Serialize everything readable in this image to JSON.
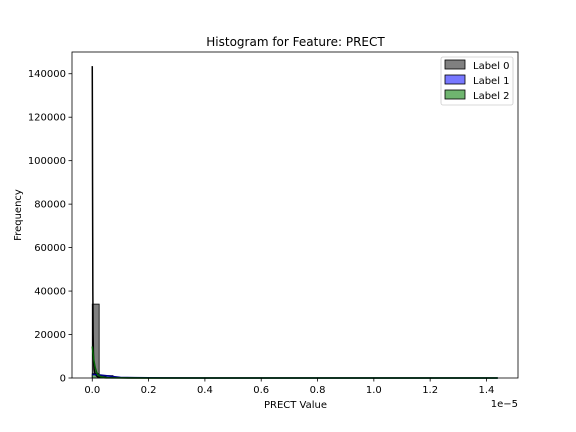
{
  "chart_data": {
    "type": "bar",
    "title": "Histogram for Feature: PRECT",
    "xlabel": "PRECT Value",
    "ylabel": "Frequency",
    "x_offset_label": "1e−5",
    "xlim": [
      -0.072,
      1.512
    ],
    "ylim": [
      0,
      150000
    ],
    "x_ticks": [
      0.0,
      0.2,
      0.4,
      0.6,
      0.8,
      1.0,
      1.2,
      1.4
    ],
    "x_tick_labels": [
      "0.0",
      "0.2",
      "0.4",
      "0.6",
      "0.8",
      "1.0",
      "1.2",
      "1.4"
    ],
    "y_ticks": [
      0,
      20000,
      40000,
      60000,
      80000,
      100000,
      120000,
      140000
    ],
    "y_tick_labels": [
      "0",
      "20000",
      "40000",
      "60000",
      "80000",
      "100000",
      "120000",
      "140000"
    ],
    "legend_position": "top-right",
    "series": [
      {
        "name": "Label 0",
        "color": "#808080",
        "edge": "#000000",
        "bins": [
          [
            0.0,
            0.0245,
            34000
          ],
          [
            0.0245,
            0.049,
            300
          ]
        ],
        "kde": [
          [
            0.0,
            143500
          ],
          [
            0.0005,
            120000
          ],
          [
            0.001,
            90000
          ],
          [
            0.0015,
            65000
          ],
          [
            0.002,
            40000
          ],
          [
            0.003,
            20000
          ],
          [
            0.004,
            12000
          ],
          [
            0.005,
            7000
          ],
          [
            0.0065,
            4000
          ],
          [
            0.008,
            3000
          ],
          [
            0.01,
            2000
          ],
          [
            0.015,
            1000
          ],
          [
            0.02,
            500
          ],
          [
            0.03,
            200
          ],
          [
            0.05,
            80
          ],
          [
            0.1,
            30
          ],
          [
            0.2,
            0
          ],
          [
            1.44,
            0
          ]
        ]
      },
      {
        "name": "Label 1",
        "color": "#7878ff",
        "edge": "#00008b",
        "bins": [
          [
            0.0,
            0.0245,
            1500
          ],
          [
            0.0245,
            0.049,
            1000
          ],
          [
            0.049,
            0.0735,
            1100
          ],
          [
            0.0735,
            0.098,
            200
          ]
        ],
        "kde": [
          [
            0.0,
            1600
          ],
          [
            0.02,
            1500
          ],
          [
            0.04,
            1200
          ],
          [
            0.06,
            900
          ],
          [
            0.08,
            600
          ],
          [
            0.1,
            300
          ],
          [
            0.15,
            150
          ],
          [
            0.25,
            60
          ],
          [
            0.4,
            20
          ],
          [
            0.6,
            10
          ],
          [
            1.0,
            5
          ],
          [
            1.44,
            0
          ]
        ]
      },
      {
        "name": "Label 2",
        "color": "#6fb56f",
        "edge": "#006400",
        "bins": [
          [
            0.0,
            0.0245,
            2000
          ],
          [
            0.0245,
            0.049,
            600
          ],
          [
            0.049,
            0.0735,
            100
          ]
        ],
        "kde": [
          [
            0.0,
            14500
          ],
          [
            0.003,
            11000
          ],
          [
            0.006,
            8000
          ],
          [
            0.01,
            5000
          ],
          [
            0.015,
            2800
          ],
          [
            0.02,
            1500
          ],
          [
            0.03,
            600
          ],
          [
            0.04,
            300
          ],
          [
            0.06,
            120
          ],
          [
            0.1,
            40
          ],
          [
            0.2,
            0
          ],
          [
            1.44,
            0
          ]
        ]
      }
    ]
  }
}
